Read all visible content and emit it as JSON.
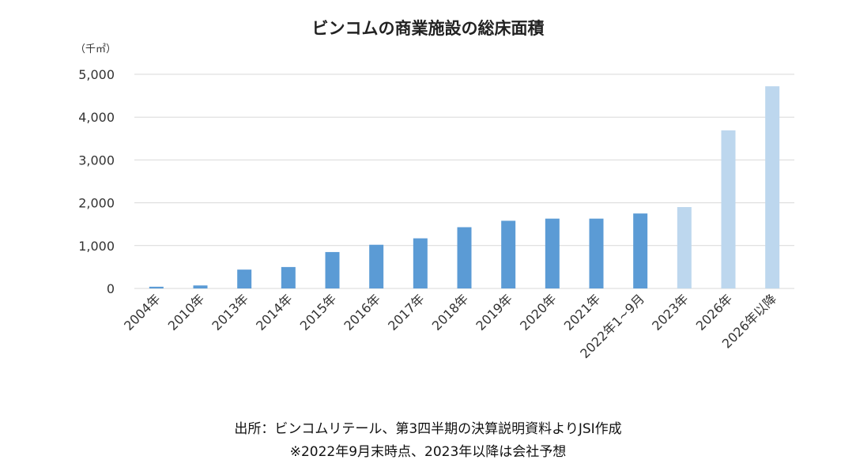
{
  "chart_data": {
    "type": "bar",
    "title": "ビンコムの商業施設の総床面積",
    "unit": "（千㎡）",
    "categories": [
      "2004年",
      "2010年",
      "2013年",
      "2014年",
      "2015年",
      "2016年",
      "2017年",
      "2018年",
      "2019年",
      "2020年",
      "2021年",
      "2022年1~9月",
      "2023年",
      "2026年",
      "2026年以降"
    ],
    "values": [
      40,
      70,
      440,
      500,
      850,
      1020,
      1170,
      1430,
      1580,
      1630,
      1630,
      1750,
      1900,
      3690,
      4720
    ],
    "forecast": [
      false,
      false,
      false,
      false,
      false,
      false,
      false,
      false,
      false,
      false,
      false,
      false,
      true,
      true,
      true
    ],
    "ylim": [
      0,
      5000
    ],
    "yticks": [
      0,
      1000,
      2000,
      3000,
      4000,
      5000
    ],
    "ytick_labels": [
      "0",
      "1,000",
      "2,000",
      "3,000",
      "4,000",
      "5,000"
    ],
    "grid": true,
    "colors": {
      "actual": "#5b9bd5",
      "forecast": "#bdd7ee",
      "grid": "#d9d9d9"
    }
  },
  "footer": {
    "source": "出所：ビンコムリテール、第3四半期の決算説明資料よりJSI作成",
    "note": "※2022年9月末時点、2023年以降は会社予想"
  }
}
